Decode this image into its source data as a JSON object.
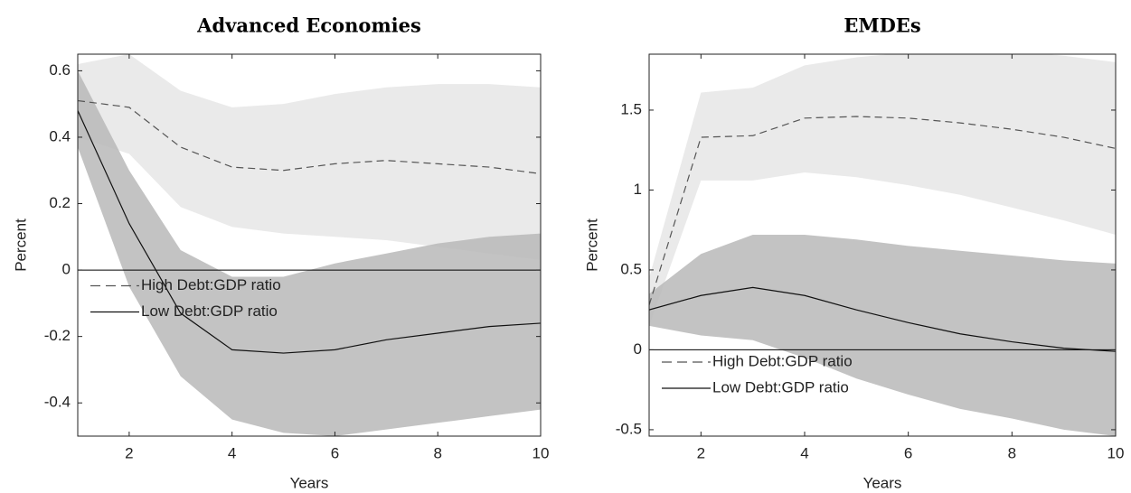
{
  "chart_data": [
    {
      "type": "line",
      "title": "Advanced Economies",
      "xlabel": "Years",
      "ylabel": "Percent",
      "x": [
        1,
        2,
        3,
        4,
        5,
        6,
        7,
        8,
        9,
        10
      ],
      "xlim": [
        1,
        10
      ],
      "xticks": [
        2,
        4,
        6,
        8,
        10
      ],
      "ylim": [
        -0.5,
        0.65
      ],
      "yticks": [
        -0.4,
        -0.2,
        0,
        0.2,
        0.4,
        0.6
      ],
      "reference_line": 0,
      "legend": "center left",
      "series": [
        {
          "name": "High Debt:GDP ratio",
          "color": "#555555",
          "linestyle": "dashed",
          "band_color": "#e6e6e6",
          "values": [
            0.51,
            0.49,
            0.37,
            0.31,
            0.3,
            0.32,
            0.33,
            0.32,
            0.31,
            0.29
          ],
          "band_upper": [
            0.62,
            0.65,
            0.54,
            0.49,
            0.5,
            0.53,
            0.55,
            0.56,
            0.56,
            0.55
          ],
          "band_lower": [
            0.4,
            0.35,
            0.19,
            0.13,
            0.11,
            0.1,
            0.09,
            0.07,
            0.05,
            0.03
          ]
        },
        {
          "name": "Low Debt:GDP ratio",
          "color": "#111111",
          "linestyle": "solid",
          "band_color": "#b9b9b9",
          "values": [
            0.48,
            0.14,
            -0.13,
            -0.24,
            -0.25,
            -0.24,
            -0.21,
            -0.19,
            -0.17,
            -0.16
          ],
          "band_upper": [
            0.6,
            0.3,
            0.06,
            -0.02,
            -0.02,
            0.02,
            0.05,
            0.08,
            0.1,
            0.11
          ],
          "band_lower": [
            0.37,
            -0.05,
            -0.32,
            -0.45,
            -0.49,
            -0.5,
            -0.48,
            -0.46,
            -0.44,
            -0.42
          ]
        }
      ]
    },
    {
      "type": "line",
      "title": "EMDEs",
      "xlabel": "Years",
      "ylabel": "Percent",
      "x": [
        1,
        2,
        3,
        4,
        5,
        6,
        7,
        8,
        9,
        10
      ],
      "xlim": [
        1,
        10
      ],
      "xticks": [
        2,
        4,
        6,
        8,
        10
      ],
      "ylim": [
        -0.54,
        1.85
      ],
      "yticks": [
        -0.5,
        0,
        0.5,
        1,
        1.5
      ],
      "reference_line": 0,
      "legend": "lower left",
      "series": [
        {
          "name": "High Debt:GDP ratio",
          "color": "#555555",
          "linestyle": "dashed",
          "band_color": "#e6e6e6",
          "values": [
            0.28,
            1.33,
            1.34,
            1.45,
            1.46,
            1.45,
            1.42,
            1.38,
            1.33,
            1.26
          ],
          "band_upper": [
            0.45,
            1.61,
            1.64,
            1.78,
            1.83,
            1.86,
            1.87,
            1.87,
            1.84,
            1.8
          ],
          "band_lower": [
            0.15,
            1.06,
            1.06,
            1.11,
            1.08,
            1.03,
            0.97,
            0.89,
            0.81,
            0.72
          ]
        },
        {
          "name": "Low Debt:GDP ratio",
          "color": "#111111",
          "linestyle": "solid",
          "band_color": "#b9b9b9",
          "values": [
            0.25,
            0.34,
            0.39,
            0.34,
            0.25,
            0.17,
            0.1,
            0.05,
            0.01,
            -0.01
          ],
          "band_upper": [
            0.35,
            0.6,
            0.72,
            0.72,
            0.69,
            0.65,
            0.62,
            0.59,
            0.56,
            0.54
          ],
          "band_lower": [
            0.15,
            0.09,
            0.06,
            -0.05,
            -0.18,
            -0.28,
            -0.37,
            -0.43,
            -0.5,
            -0.54
          ]
        }
      ]
    }
  ]
}
